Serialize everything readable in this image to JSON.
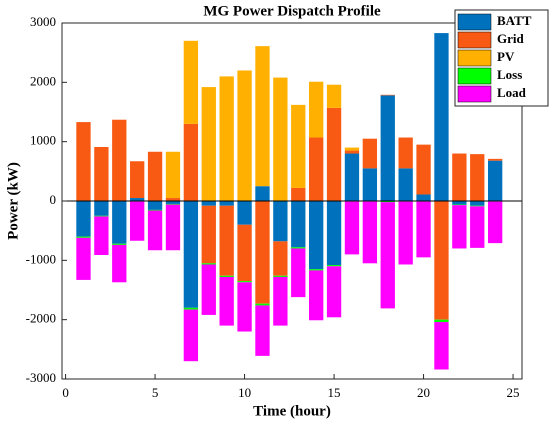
{
  "chart_data": {
    "type": "bar",
    "stacked": true,
    "title": "MG Power Dispatch Profile",
    "xlabel": "Time (hour)",
    "ylabel": "Power (kW)",
    "x": [
      1,
      2,
      3,
      4,
      5,
      6,
      7,
      8,
      9,
      10,
      11,
      12,
      13,
      14,
      15,
      16,
      17,
      18,
      19,
      20,
      21,
      22,
      23,
      24
    ],
    "xlim": [
      -0.2,
      25.5
    ],
    "xticks": [
      0,
      5,
      10,
      15,
      20,
      25
    ],
    "ylim": [
      -3000,
      3000
    ],
    "yticks": [
      -3000,
      -2000,
      -1000,
      0,
      1000,
      2000,
      3000
    ],
    "legend": "northeast",
    "series": [
      {
        "name": "BATT",
        "color": "#0072bd",
        "values": [
          -600,
          -250,
          -720,
          50,
          -150,
          -50,
          -1800,
          -80,
          -80,
          -400,
          250,
          -680,
          -780,
          -1150,
          -1080,
          800,
          550,
          1780,
          550,
          110,
          2830,
          -60,
          -80,
          680
        ]
      },
      {
        "name": "Grid",
        "color": "#f85a14",
        "values": [
          1330,
          910,
          1370,
          620,
          830,
          50,
          1300,
          -970,
          -1180,
          -950,
          -1730,
          -580,
          220,
          1070,
          1570,
          50,
          500,
          10,
          520,
          840,
          -2000,
          800,
          790,
          30
        ]
      },
      {
        "name": "PV",
        "color": "#ffb000",
        "values": [
          0,
          0,
          0,
          0,
          0,
          780,
          1400,
          1920,
          2100,
          2200,
          2360,
          2080,
          1400,
          940,
          390,
          50,
          0,
          0,
          0,
          0,
          0,
          0,
          0,
          0
        ]
      },
      {
        "name": "Loss",
        "color": "#00ff00",
        "values": [
          -20,
          -10,
          -20,
          -10,
          -10,
          -10,
          -30,
          -20,
          -20,
          -20,
          -30,
          -20,
          -20,
          -20,
          -20,
          -10,
          -10,
          -20,
          -10,
          -10,
          -40,
          -10,
          -10,
          -10
        ]
      },
      {
        "name": "Load",
        "color": "#ff00ff",
        "values": [
          -710,
          -650,
          -630,
          -660,
          -670,
          -770,
          -870,
          -850,
          -820,
          -830,
          -850,
          -820,
          -820,
          -840,
          -860,
          -890,
          -1040,
          -1790,
          -1060,
          -940,
          -800,
          -730,
          -700,
          -700
        ]
      }
    ]
  }
}
